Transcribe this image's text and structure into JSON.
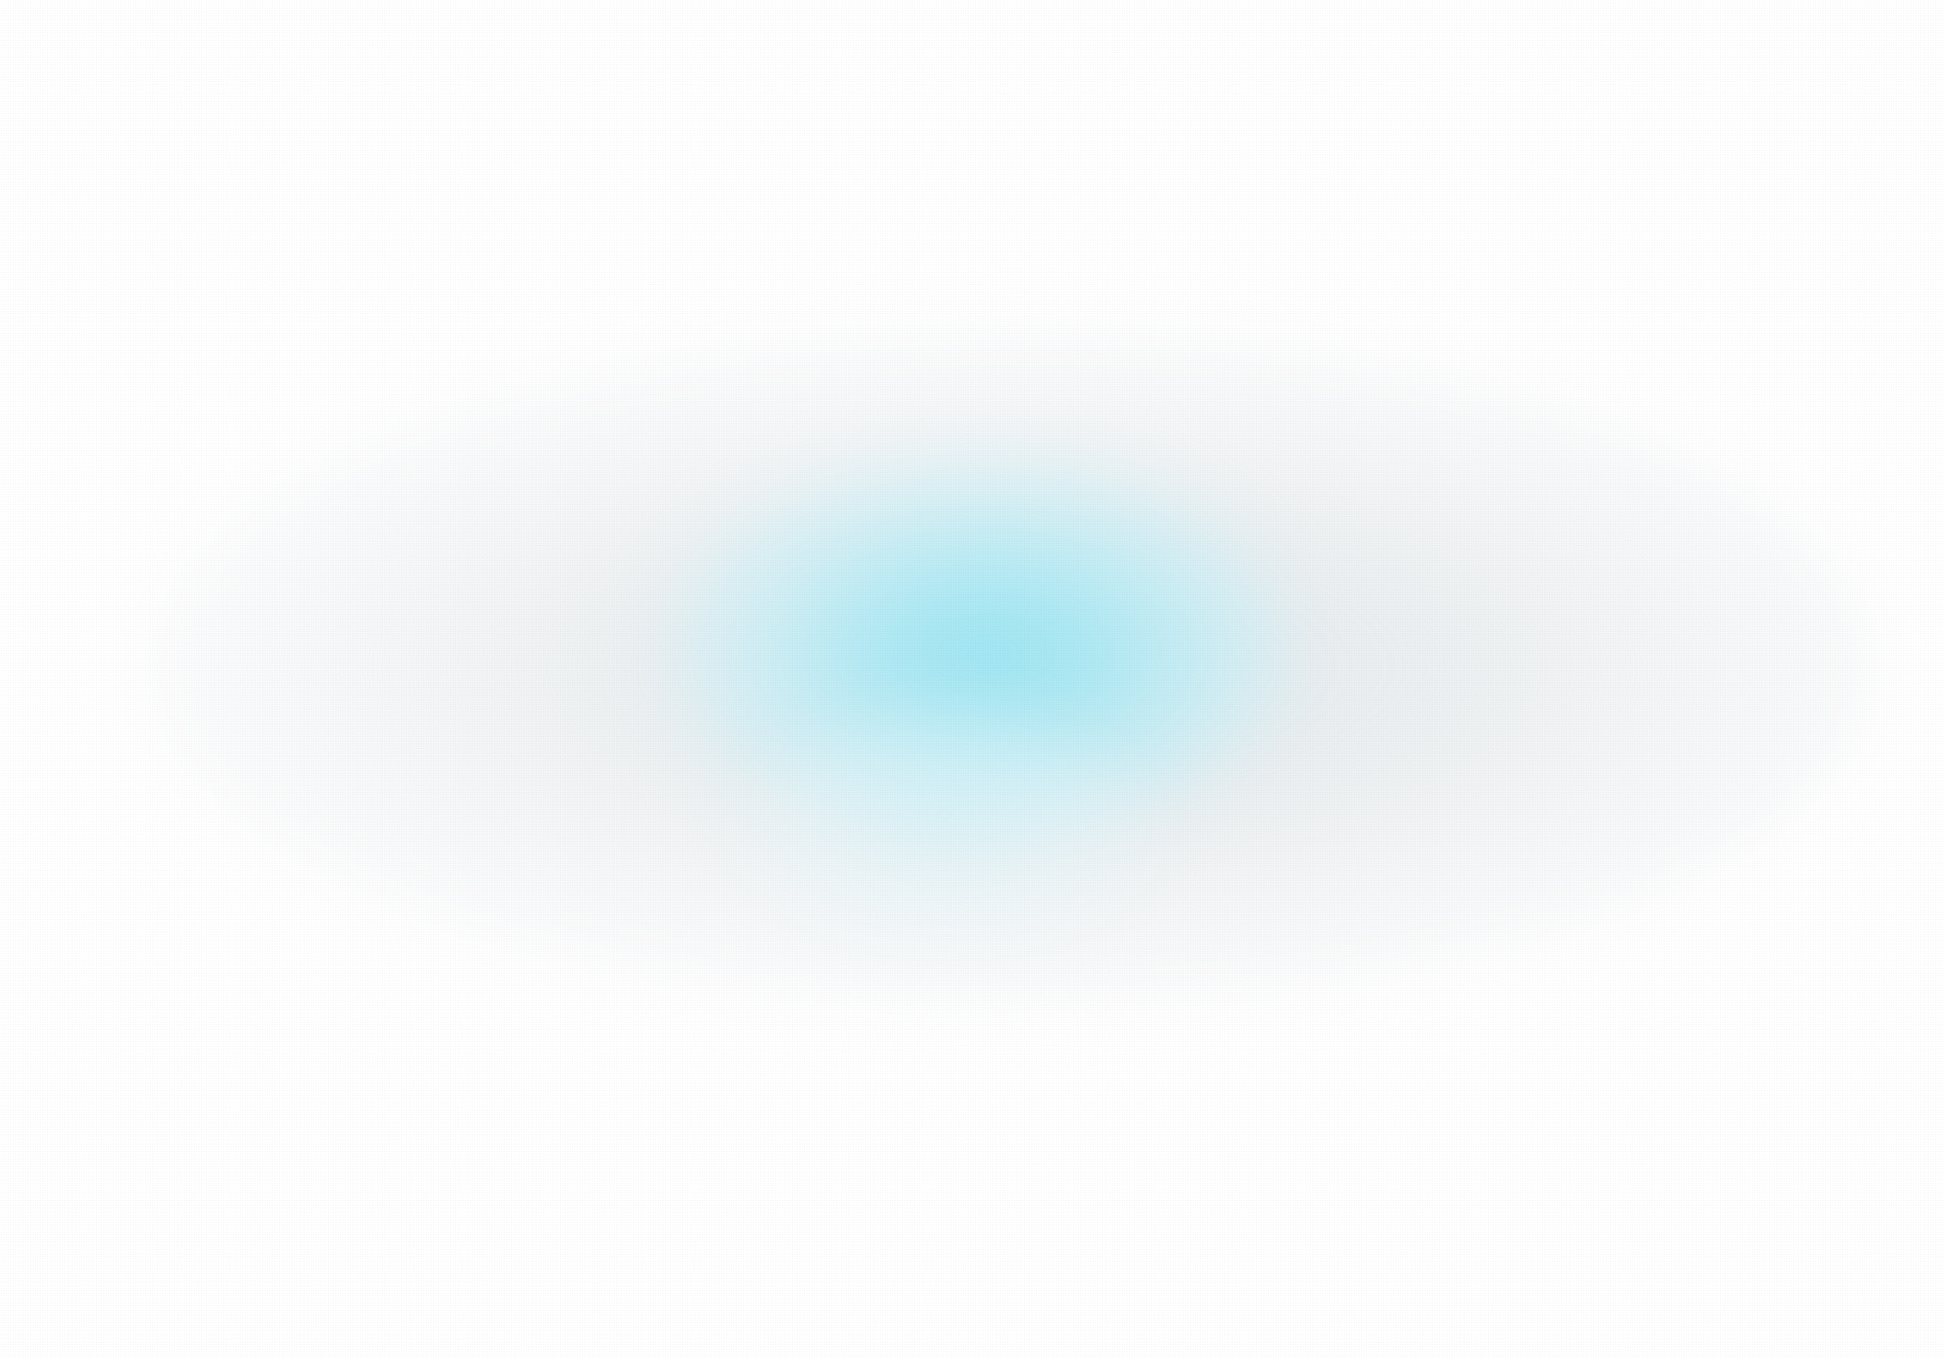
{
  "background": {
    "base_color": "#ffffff",
    "haze_color": "#e6eaec",
    "glow_color": "#a6e8f4"
  }
}
